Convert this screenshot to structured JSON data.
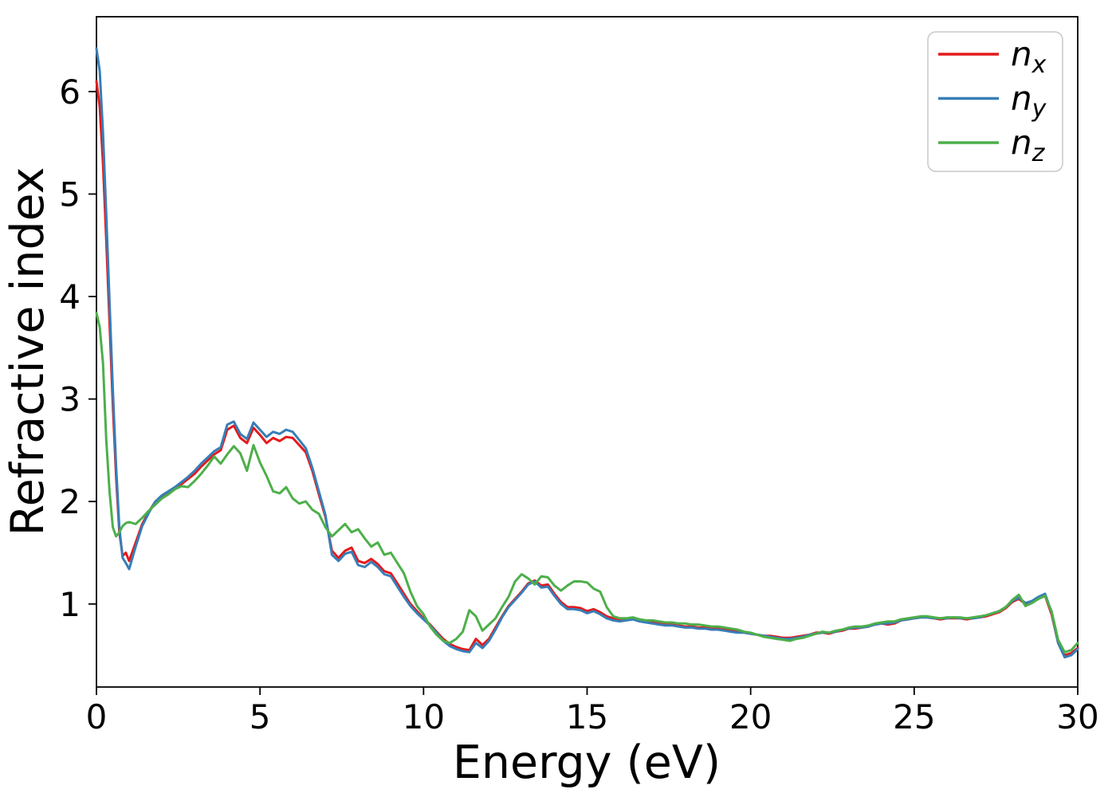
{
  "chart_data": {
    "type": "line",
    "title": "",
    "xlabel": "Energy (eV)",
    "ylabel": "Refractive index",
    "xlim": [
      0,
      30
    ],
    "ylim": [
      0.19,
      6.73
    ],
    "x_ticks": [
      0,
      5,
      10,
      15,
      20,
      25,
      30
    ],
    "y_ticks": [
      1,
      2,
      3,
      4,
      5,
      6
    ],
    "grid": false,
    "background": "#ffffff",
    "axis_color": "#000000",
    "legend": {
      "position": "upper right",
      "border_color": "#c8c8c8",
      "fill": "#ffffff"
    },
    "x": [
      0,
      0.1,
      0.2,
      0.3,
      0.4,
      0.5,
      0.6,
      0.7,
      0.8,
      0.9,
      1,
      1.2,
      1.4,
      1.6,
      1.8,
      2,
      2.2,
      2.4,
      2.6,
      2.8,
      3,
      3.2,
      3.4,
      3.6,
      3.8,
      4,
      4.2,
      4.4,
      4.6,
      4.8,
      5,
      5.2,
      5.4,
      5.6,
      5.8,
      6,
      6.2,
      6.4,
      6.6,
      6.8,
      7,
      7.2,
      7.4,
      7.6,
      7.8,
      8,
      8.2,
      8.4,
      8.6,
      8.8,
      9,
      9.2,
      9.4,
      9.6,
      9.8,
      10,
      10.2,
      10.4,
      10.6,
      10.8,
      11,
      11.2,
      11.4,
      11.6,
      11.8,
      12,
      12.2,
      12.4,
      12.6,
      12.8,
      13,
      13.2,
      13.4,
      13.6,
      13.8,
      14,
      14.2,
      14.4,
      14.6,
      14.8,
      15,
      15.2,
      15.4,
      15.6,
      15.8,
      16,
      16.2,
      16.4,
      16.6,
      16.8,
      17,
      17.2,
      17.4,
      17.6,
      17.8,
      18,
      18.2,
      18.4,
      18.6,
      18.8,
      19,
      19.2,
      19.4,
      19.6,
      19.8,
      20,
      20.2,
      20.4,
      20.6,
      20.8,
      21,
      21.2,
      21.4,
      21.6,
      21.8,
      22,
      22.2,
      22.4,
      22.6,
      22.8,
      23,
      23.2,
      23.4,
      23.6,
      23.8,
      24,
      24.2,
      24.4,
      24.6,
      24.8,
      25,
      25.2,
      25.4,
      25.6,
      25.8,
      26,
      26.2,
      26.4,
      26.6,
      26.8,
      27,
      27.2,
      27.4,
      27.6,
      27.8,
      28,
      28.2,
      28.4,
      28.6,
      28.8,
      29,
      29.2,
      29.4,
      29.6,
      29.8,
      30
    ],
    "series": [
      {
        "name": "n_x",
        "label_base": "n",
        "label_sub": "x",
        "color": "#e41a1c",
        "values": [
          6.1,
          5.85,
          5.3,
          4.55,
          3.75,
          2.95,
          2.25,
          1.7,
          1.47,
          1.5,
          1.42,
          1.6,
          1.78,
          1.9,
          2.0,
          2.05,
          2.09,
          2.12,
          2.17,
          2.22,
          2.27,
          2.34,
          2.4,
          2.46,
          2.5,
          2.7,
          2.74,
          2.62,
          2.57,
          2.72,
          2.65,
          2.57,
          2.62,
          2.59,
          2.63,
          2.62,
          2.55,
          2.48,
          2.3,
          2.07,
          1.85,
          1.52,
          1.45,
          1.52,
          1.55,
          1.42,
          1.4,
          1.44,
          1.39,
          1.32,
          1.3,
          1.2,
          1.1,
          1.0,
          0.93,
          0.86,
          0.8,
          0.73,
          0.66,
          0.61,
          0.58,
          0.56,
          0.55,
          0.66,
          0.6,
          0.66,
          0.77,
          0.88,
          0.98,
          1.05,
          1.12,
          1.2,
          1.23,
          1.18,
          1.19,
          1.1,
          1.02,
          0.97,
          0.97,
          0.96,
          0.93,
          0.95,
          0.92,
          0.88,
          0.86,
          0.84,
          0.85,
          0.86,
          0.84,
          0.83,
          0.82,
          0.81,
          0.8,
          0.8,
          0.79,
          0.78,
          0.78,
          0.77,
          0.77,
          0.76,
          0.76,
          0.75,
          0.74,
          0.73,
          0.72,
          0.71,
          0.7,
          0.69,
          0.69,
          0.68,
          0.67,
          0.67,
          0.68,
          0.69,
          0.7,
          0.72,
          0.72,
          0.71,
          0.73,
          0.74,
          0.76,
          0.76,
          0.77,
          0.78,
          0.8,
          0.81,
          0.8,
          0.81,
          0.84,
          0.85,
          0.86,
          0.87,
          0.87,
          0.86,
          0.85,
          0.86,
          0.86,
          0.86,
          0.85,
          0.86,
          0.87,
          0.88,
          0.9,
          0.92,
          0.96,
          1.02,
          1.05,
          1.0,
          1.02,
          1.06,
          1.08,
          0.9,
          0.62,
          0.5,
          0.52,
          0.57
        ]
      },
      {
        "name": "n_y",
        "label_base": "n",
        "label_sub": "y",
        "color": "#377eb8",
        "values": [
          6.42,
          6.2,
          5.6,
          4.8,
          3.95,
          3.1,
          2.35,
          1.75,
          1.45,
          1.4,
          1.34,
          1.56,
          1.76,
          1.89,
          2.0,
          2.06,
          2.1,
          2.14,
          2.19,
          2.24,
          2.3,
          2.37,
          2.43,
          2.49,
          2.53,
          2.75,
          2.78,
          2.66,
          2.61,
          2.77,
          2.7,
          2.63,
          2.68,
          2.66,
          2.7,
          2.68,
          2.6,
          2.52,
          2.33,
          2.1,
          1.87,
          1.48,
          1.42,
          1.49,
          1.51,
          1.38,
          1.36,
          1.41,
          1.36,
          1.29,
          1.27,
          1.17,
          1.07,
          0.98,
          0.91,
          0.85,
          0.79,
          0.72,
          0.64,
          0.59,
          0.56,
          0.54,
          0.53,
          0.62,
          0.57,
          0.64,
          0.75,
          0.87,
          0.97,
          1.04,
          1.11,
          1.19,
          1.22,
          1.16,
          1.17,
          1.08,
          1.0,
          0.95,
          0.95,
          0.94,
          0.91,
          0.93,
          0.9,
          0.86,
          0.84,
          0.83,
          0.84,
          0.85,
          0.83,
          0.82,
          0.81,
          0.8,
          0.79,
          0.79,
          0.78,
          0.77,
          0.77,
          0.76,
          0.76,
          0.75,
          0.75,
          0.74,
          0.73,
          0.72,
          0.72,
          0.71,
          0.7,
          0.69,
          0.68,
          0.67,
          0.66,
          0.66,
          0.67,
          0.68,
          0.7,
          0.71,
          0.72,
          0.72,
          0.73,
          0.75,
          0.76,
          0.77,
          0.77,
          0.78,
          0.8,
          0.81,
          0.81,
          0.82,
          0.84,
          0.85,
          0.86,
          0.87,
          0.87,
          0.86,
          0.86,
          0.86,
          0.87,
          0.86,
          0.86,
          0.86,
          0.87,
          0.89,
          0.91,
          0.93,
          0.97,
          1.03,
          1.06,
          1.01,
          1.03,
          1.07,
          1.1,
          0.92,
          0.62,
          0.48,
          0.5,
          0.56
        ]
      },
      {
        "name": "n_z",
        "label_base": "n",
        "label_sub": "z",
        "color": "#4daf4a",
        "values": [
          3.84,
          3.7,
          3.35,
          2.6,
          2.1,
          1.75,
          1.66,
          1.7,
          1.76,
          1.79,
          1.8,
          1.78,
          1.84,
          1.91,
          1.97,
          2.03,
          2.07,
          2.12,
          2.15,
          2.14,
          2.2,
          2.27,
          2.35,
          2.44,
          2.37,
          2.46,
          2.54,
          2.47,
          2.3,
          2.55,
          2.38,
          2.25,
          2.1,
          2.08,
          2.14,
          2.03,
          1.98,
          2.0,
          1.92,
          1.88,
          1.75,
          1.66,
          1.72,
          1.78,
          1.7,
          1.73,
          1.64,
          1.56,
          1.6,
          1.48,
          1.5,
          1.4,
          1.3,
          1.12,
          0.98,
          0.9,
          0.78,
          0.7,
          0.64,
          0.62,
          0.66,
          0.73,
          0.94,
          0.88,
          0.74,
          0.8,
          0.86,
          0.97,
          1.07,
          1.22,
          1.29,
          1.25,
          1.19,
          1.27,
          1.26,
          1.18,
          1.13,
          1.18,
          1.22,
          1.22,
          1.21,
          1.15,
          1.12,
          0.97,
          0.88,
          0.86,
          0.86,
          0.87,
          0.85,
          0.84,
          0.84,
          0.83,
          0.82,
          0.82,
          0.81,
          0.81,
          0.8,
          0.8,
          0.79,
          0.78,
          0.78,
          0.77,
          0.76,
          0.75,
          0.73,
          0.72,
          0.7,
          0.68,
          0.67,
          0.66,
          0.65,
          0.64,
          0.66,
          0.67,
          0.69,
          0.71,
          0.73,
          0.72,
          0.74,
          0.75,
          0.77,
          0.78,
          0.78,
          0.79,
          0.81,
          0.82,
          0.83,
          0.83,
          0.85,
          0.86,
          0.87,
          0.88,
          0.88,
          0.87,
          0.86,
          0.87,
          0.87,
          0.87,
          0.86,
          0.87,
          0.88,
          0.89,
          0.91,
          0.93,
          0.97,
          1.04,
          1.09,
          0.98,
          1.01,
          1.05,
          1.08,
          0.93,
          0.65,
          0.53,
          0.55,
          0.62
        ]
      }
    ]
  }
}
